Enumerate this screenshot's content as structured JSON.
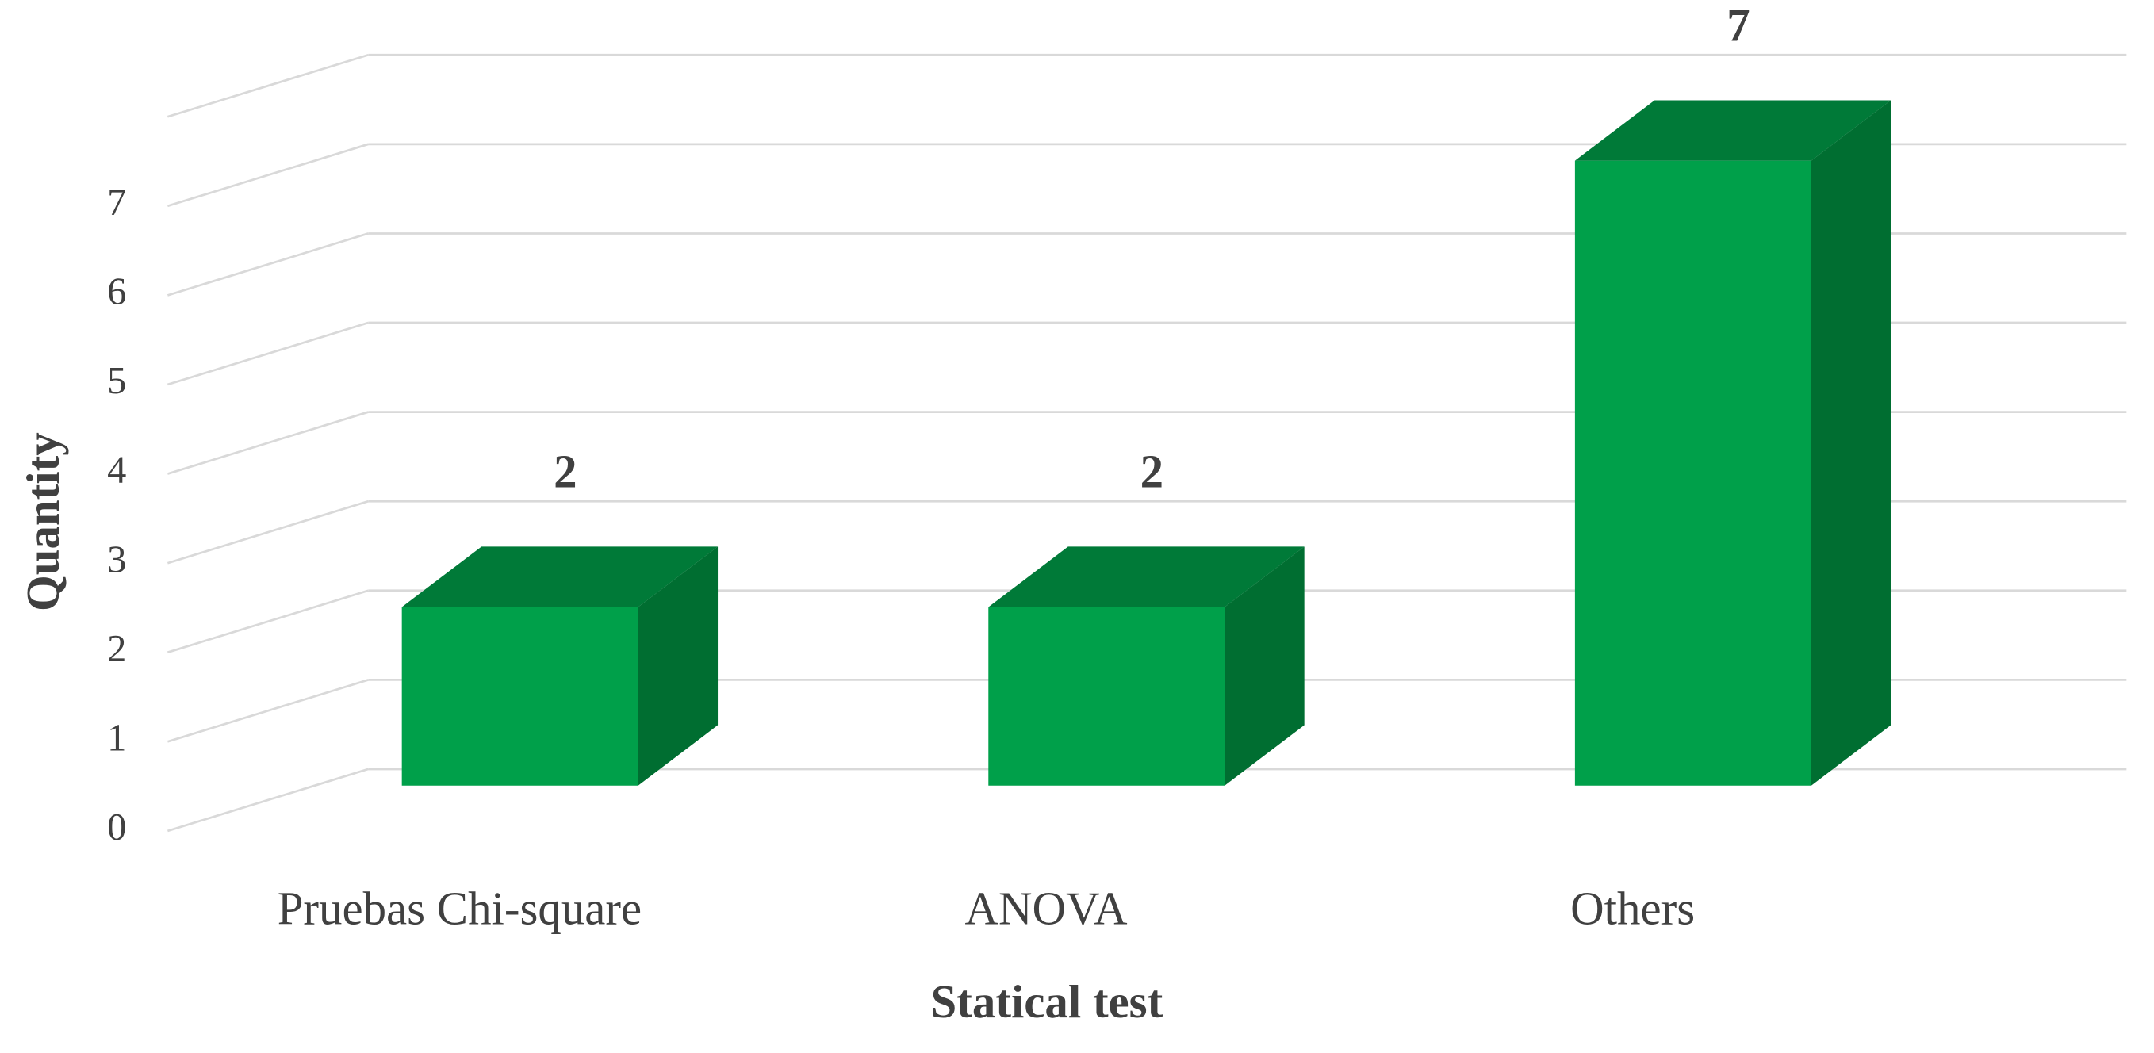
{
  "chart_data": {
    "type": "bar3d",
    "x_label": "Statical test",
    "y_label": "Quantity",
    "categories": [
      "Pruebas Chi-square",
      "ANOVA",
      "Others"
    ],
    "values": [
      2,
      2,
      7
    ],
    "colors": {
      "front": "#00a04a",
      "top": "#007a38",
      "side": "#006e31"
    },
    "ylim": [
      0,
      8
    ],
    "yticks": [
      0,
      1,
      2,
      3,
      4,
      5,
      6,
      7
    ],
    "grid": true
  }
}
